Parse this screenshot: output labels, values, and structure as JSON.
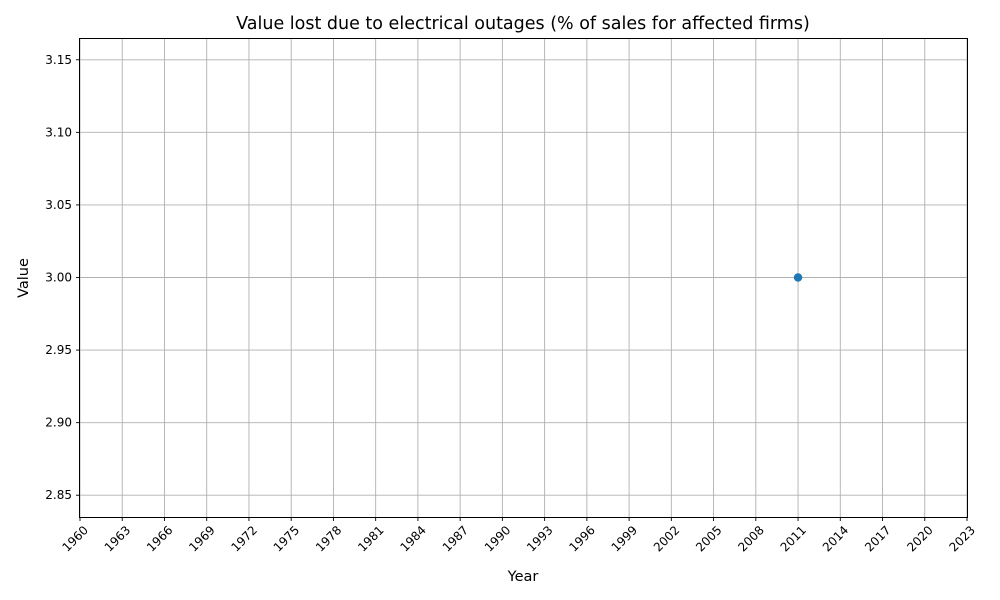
{
  "chart_data": {
    "type": "line",
    "title": "Value lost due to electrical outages (% of sales for affected firms)",
    "xlabel": "Year",
    "ylabel": "Value",
    "xlim": [
      1960,
      2023
    ],
    "ylim": [
      2.835,
      3.165
    ],
    "x_ticks": [
      1960,
      1963,
      1966,
      1969,
      1972,
      1975,
      1978,
      1981,
      1984,
      1987,
      1990,
      1993,
      1996,
      1999,
      2002,
      2005,
      2008,
      2011,
      2014,
      2017,
      2020,
      2023
    ],
    "y_ticks": [
      2.85,
      2.9,
      2.95,
      3.0,
      3.05,
      3.1,
      3.15
    ],
    "y_tick_labels": [
      "2.85",
      "2.90",
      "2.95",
      "3.00",
      "3.05",
      "3.10",
      "3.15"
    ],
    "grid": true,
    "series": [
      {
        "x": [
          2011
        ],
        "y": [
          3.0
        ],
        "color": "#1f77b4",
        "marker": "circle"
      }
    ]
  }
}
